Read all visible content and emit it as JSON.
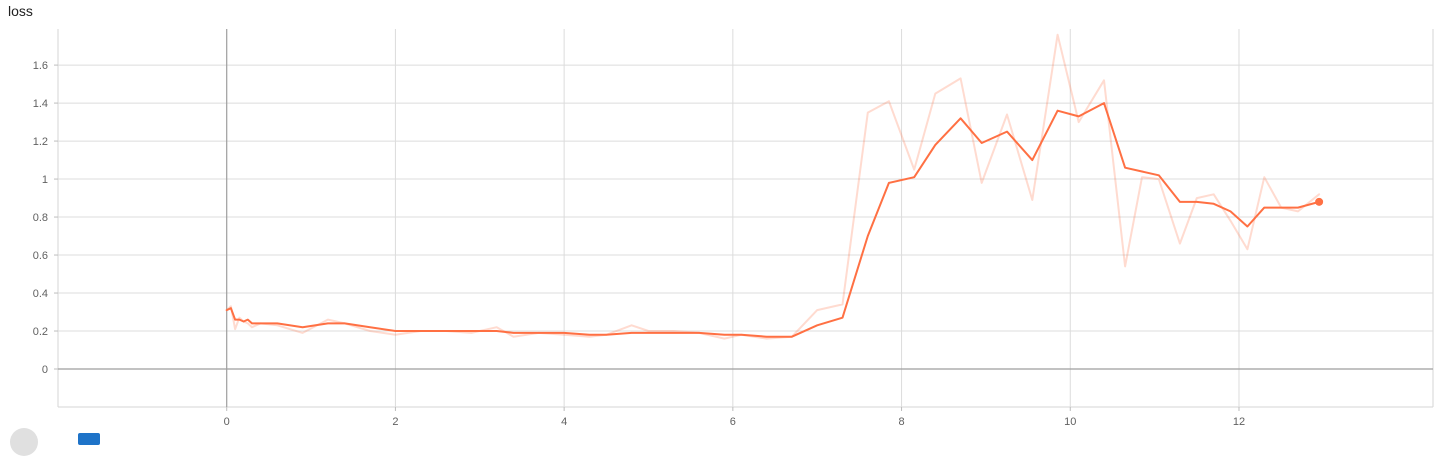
{
  "chart_data": {
    "type": "line",
    "title": "loss",
    "xlabel": "",
    "ylabel": "",
    "xlim": [
      -2,
      14.3
    ],
    "ylim": [
      -0.2,
      1.79
    ],
    "x_ticks": [
      0,
      2,
      4,
      6,
      8,
      10,
      12
    ],
    "y_ticks": [
      0,
      0.2,
      0.4,
      0.6,
      0.8,
      1,
      1.2,
      1.4,
      1.6
    ],
    "x_tick_labels": [
      "0",
      "2",
      "4",
      "6",
      "8",
      "10",
      "12"
    ],
    "y_tick_labels": [
      "0",
      "0.2",
      "0.4",
      "0.6",
      "0.8",
      "1",
      "1.2",
      "1.4",
      "1.6"
    ],
    "grid": true,
    "legend": "none",
    "series": [
      {
        "role": "raw",
        "color": "#ff7043",
        "opacity": 0.25,
        "x": [
          0.0,
          0.05,
          0.1,
          0.15,
          0.2,
          0.25,
          0.3,
          0.4,
          0.6,
          0.9,
          1.2,
          1.4,
          1.7,
          2.0,
          2.3,
          2.6,
          2.9,
          3.2,
          3.4,
          3.7,
          4.0,
          4.3,
          4.5,
          4.8,
          5.0,
          5.3,
          5.6,
          5.9,
          6.1,
          6.4,
          6.7,
          7.0,
          7.3,
          7.6,
          7.85,
          8.15,
          8.4,
          8.7,
          8.95,
          9.25,
          9.55,
          9.85,
          10.1,
          10.4,
          10.65,
          10.85,
          11.05,
          11.3,
          11.5,
          11.7,
          11.9,
          12.1,
          12.3,
          12.5,
          12.7,
          12.95
        ],
        "y": [
          0.31,
          0.33,
          0.21,
          0.27,
          0.25,
          0.24,
          0.22,
          0.24,
          0.23,
          0.19,
          0.26,
          0.24,
          0.2,
          0.18,
          0.2,
          0.2,
          0.19,
          0.22,
          0.17,
          0.19,
          0.18,
          0.17,
          0.18,
          0.23,
          0.2,
          0.2,
          0.19,
          0.16,
          0.18,
          0.16,
          0.17,
          0.31,
          0.34,
          1.35,
          1.41,
          1.05,
          1.45,
          1.53,
          0.98,
          1.34,
          0.89,
          1.76,
          1.3,
          1.52,
          0.54,
          1.01,
          1.0,
          0.66,
          0.9,
          0.92,
          0.78,
          0.63,
          1.01,
          0.85,
          0.83,
          0.92
        ]
      },
      {
        "role": "smoothed",
        "color": "#ff7043",
        "opacity": 1,
        "x": [
          0.0,
          0.05,
          0.1,
          0.15,
          0.2,
          0.25,
          0.3,
          0.6,
          0.9,
          1.2,
          1.4,
          1.7,
          2.0,
          2.3,
          2.6,
          2.9,
          3.2,
          3.4,
          3.7,
          4.0,
          4.3,
          4.5,
          4.8,
          5.0,
          5.3,
          5.6,
          5.9,
          6.1,
          6.4,
          6.7,
          7.0,
          7.3,
          7.6,
          7.85,
          8.15,
          8.4,
          8.7,
          8.95,
          9.25,
          9.55,
          9.85,
          10.1,
          10.4,
          10.65,
          10.85,
          11.05,
          11.3,
          11.5,
          11.7,
          11.9,
          12.1,
          12.3,
          12.5,
          12.7,
          12.95
        ],
        "y": [
          0.31,
          0.32,
          0.26,
          0.26,
          0.25,
          0.26,
          0.24,
          0.24,
          0.22,
          0.24,
          0.24,
          0.22,
          0.2,
          0.2,
          0.2,
          0.2,
          0.2,
          0.19,
          0.19,
          0.19,
          0.18,
          0.18,
          0.19,
          0.19,
          0.19,
          0.19,
          0.18,
          0.18,
          0.17,
          0.17,
          0.23,
          0.27,
          0.7,
          0.98,
          1.01,
          1.18,
          1.32,
          1.19,
          1.25,
          1.1,
          1.36,
          1.33,
          1.4,
          1.06,
          1.04,
          1.02,
          0.88,
          0.88,
          0.87,
          0.83,
          0.75,
          0.85,
          0.85,
          0.85,
          0.88
        ]
      }
    ]
  }
}
